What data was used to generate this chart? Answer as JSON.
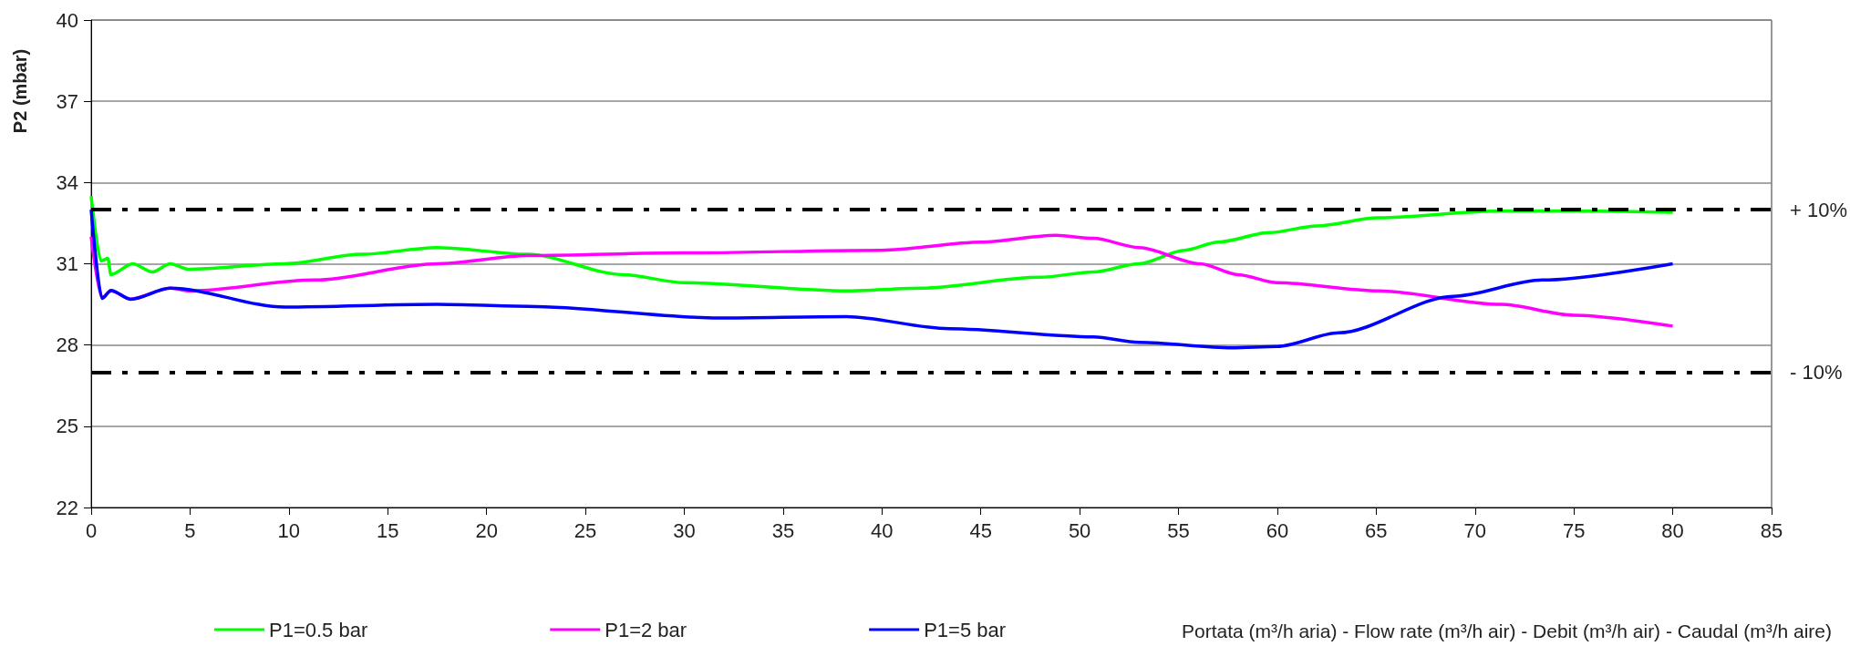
{
  "chart_data": {
    "type": "line",
    "xlabel": "Portata (m³/h aria) - Flow rate (m³/h air) - Debit (m³/h air) - Caudal (m³/h aire)",
    "ylabel": "P2 (mbar)",
    "xlim": [
      0,
      85
    ],
    "xticks": [
      0,
      5,
      10,
      15,
      20,
      25,
      30,
      35,
      40,
      45,
      50,
      55,
      60,
      65,
      70,
      75,
      80,
      85
    ],
    "ylim": [
      22,
      40
    ],
    "yticks": [
      22,
      25,
      28,
      31,
      34,
      37,
      40
    ],
    "grid": "y",
    "legend": "bottom",
    "line_style": "solid",
    "series": [
      {
        "name": "P1=0.5 bar",
        "color": "#00ff00",
        "x": [
          0,
          0.5,
          0.84,
          1,
          2.1,
          3.1,
          4,
          4.9,
          9.8,
          13.7,
          17.5,
          22.1,
          26.9,
          30,
          38.2,
          42,
          48,
          50.7,
          53,
          55.3,
          57,
          59.6,
          62,
          65.1,
          71.3,
          75,
          80
        ],
        "values": [
          33.5,
          31.1,
          31.2,
          30.6,
          31.0,
          30.7,
          31.0,
          30.8,
          31.0,
          31.35,
          31.6,
          31.35,
          30.6,
          30.3,
          30.0,
          30.1,
          30.5,
          30.7,
          31.0,
          31.5,
          31.8,
          32.15,
          32.4,
          32.7,
          32.95,
          32.95,
          32.9
        ]
      },
      {
        "name": "P1=2 bar",
        "color": "#ff00ff",
        "x": [
          0,
          0.55,
          1,
          2,
          4,
          5,
          11.3,
          17.5,
          22.1,
          30,
          40,
          45,
          48.8,
          50.7,
          53,
          56.1,
          58,
          60,
          65.1,
          71.3,
          75,
          80
        ],
        "values": [
          32.0,
          29.75,
          30.0,
          29.7,
          30.1,
          30.0,
          30.4,
          31.0,
          31.3,
          31.4,
          31.5,
          31.8,
          32.05,
          31.94,
          31.6,
          31.0,
          30.6,
          30.3,
          30.0,
          29.5,
          29.1,
          28.7
        ]
      },
      {
        "name": "P1=5 bar",
        "color": "#0000ff",
        "x": [
          0,
          0.55,
          1,
          2,
          4,
          9.8,
          17.5,
          22.1,
          31.7,
          38.2,
          43.4,
          50.7,
          53,
          57.7,
          60,
          63.1,
          68.9,
          73.4,
          80
        ],
        "values": [
          33.0,
          29.72,
          30.02,
          29.69,
          30.1,
          29.4,
          29.5,
          29.43,
          29.0,
          29.05,
          28.6,
          28.3,
          28.1,
          27.9,
          27.95,
          28.45,
          29.8,
          30.4,
          31.0
        ]
      }
    ],
    "ref_lines": [
      {
        "axis": "y",
        "value": 33,
        "color": "#000000",
        "line_style": "dashdot"
      },
      {
        "axis": "y",
        "value": 27,
        "color": "#000000",
        "line_style": "dashdot"
      }
    ],
    "annotations": [
      {
        "text": "+ 10%",
        "x": 85,
        "y": 33
      },
      {
        "text": "- 10%",
        "x": 85,
        "y": 27
      }
    ]
  }
}
